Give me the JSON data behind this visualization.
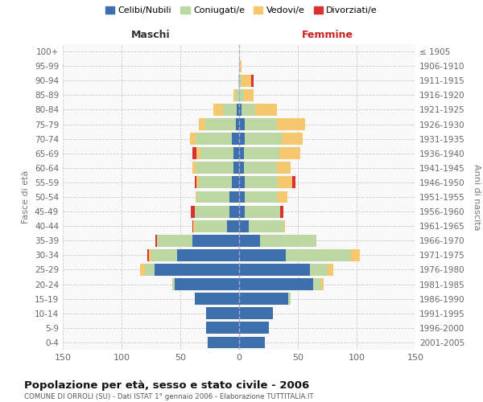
{
  "age_groups": [
    "0-4",
    "5-9",
    "10-14",
    "15-19",
    "20-24",
    "25-29",
    "30-34",
    "35-39",
    "40-44",
    "45-49",
    "50-54",
    "55-59",
    "60-64",
    "65-69",
    "70-74",
    "75-79",
    "80-84",
    "85-89",
    "90-94",
    "95-99",
    "100+"
  ],
  "birth_years": [
    "2001-2005",
    "1996-2000",
    "1991-1995",
    "1986-1990",
    "1981-1985",
    "1976-1980",
    "1971-1975",
    "1966-1970",
    "1961-1965",
    "1956-1960",
    "1951-1955",
    "1946-1950",
    "1941-1945",
    "1936-1940",
    "1931-1935",
    "1926-1930",
    "1921-1925",
    "1916-1920",
    "1911-1915",
    "1906-1910",
    "≤ 1905"
  ],
  "colors": {
    "celibi": "#3d6faf",
    "coniugati": "#bdd7a3",
    "vedovi": "#f5c76e",
    "divorziati": "#d93030"
  },
  "males": {
    "celibi": [
      27,
      28,
      28,
      38,
      55,
      72,
      53,
      40,
      10,
      8,
      8,
      6,
      5,
      5,
      6,
      3,
      2,
      0,
      0,
      0,
      0
    ],
    "coniugati": [
      0,
      0,
      0,
      0,
      2,
      8,
      22,
      30,
      28,
      30,
      28,
      28,
      32,
      28,
      31,
      26,
      12,
      3,
      1,
      0,
      0
    ],
    "vedovi": [
      0,
      0,
      0,
      0,
      0,
      4,
      2,
      0,
      1,
      0,
      1,
      2,
      3,
      3,
      5,
      5,
      8,
      2,
      0,
      0,
      0
    ],
    "divorziati": [
      0,
      0,
      0,
      0,
      0,
      0,
      1,
      1,
      1,
      3,
      0,
      2,
      0,
      4,
      0,
      0,
      0,
      0,
      0,
      0,
      0
    ]
  },
  "females": {
    "nubili": [
      22,
      25,
      29,
      42,
      63,
      60,
      40,
      18,
      8,
      5,
      5,
      5,
      4,
      4,
      5,
      5,
      2,
      0,
      0,
      0,
      0
    ],
    "coniugati": [
      0,
      0,
      0,
      2,
      7,
      15,
      55,
      48,
      30,
      30,
      28,
      28,
      28,
      30,
      31,
      27,
      12,
      4,
      2,
      0,
      0
    ],
    "vedovi": [
      0,
      0,
      0,
      0,
      2,
      5,
      8,
      0,
      1,
      0,
      8,
      12,
      12,
      18,
      18,
      24,
      18,
      8,
      8,
      2,
      0
    ],
    "divorziati": [
      0,
      0,
      0,
      0,
      0,
      0,
      0,
      0,
      0,
      3,
      0,
      3,
      0,
      0,
      0,
      0,
      0,
      0,
      2,
      0,
      0
    ]
  },
  "title": "Popolazione per età, sesso e stato civile - 2006",
  "subtitle": "COMUNE DI ORROLI (SU) - Dati ISTAT 1° gennaio 2006 - Elaborazione TUTTITALIA.IT",
  "xlabel_males": "Maschi",
  "xlabel_females": "Femmine",
  "ylabel_left": "Fasce di età",
  "ylabel_right": "Anni di nascita",
  "xlim": 150,
  "legend_labels": [
    "Celibi/Nubili",
    "Coniugati/e",
    "Vedovi/e",
    "Divorziati/e"
  ],
  "bg_color": "#f9f9f9",
  "grid_color": "#cccccc"
}
